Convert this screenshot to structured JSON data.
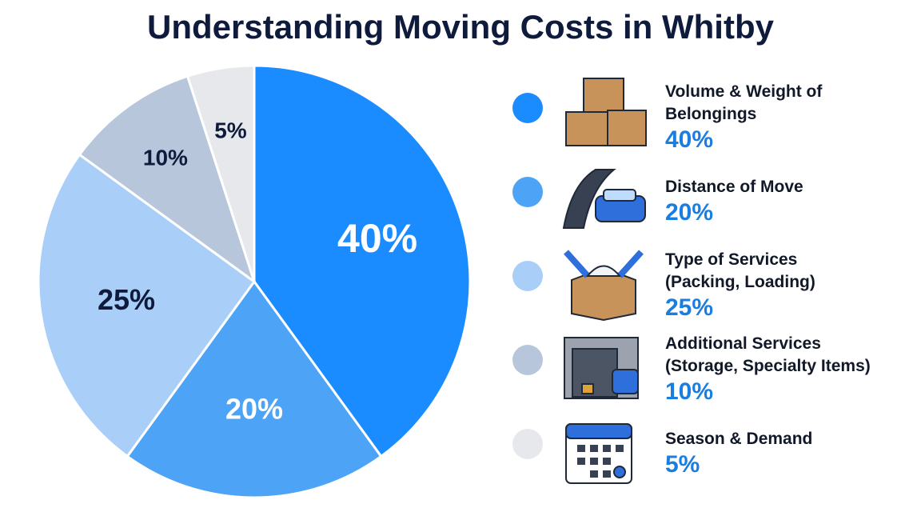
{
  "chart_data": {
    "type": "pie",
    "title": "Understanding Moving Costs in Whitby",
    "categories": [
      "Volume & Weight of Belongings",
      "Distance of Move",
      "Type of Services\n(Packing, Loading)",
      "Additional Services\n(Storage, Specialty Items)",
      "Season & Demand"
    ],
    "values": [
      40,
      20,
      25,
      10,
      5
    ],
    "value_labels": [
      "40%",
      "20%",
      "25%",
      "10%",
      "5%"
    ],
    "colors": [
      "#1a8cff",
      "#4da3f5",
      "#a9cff8",
      "#b8c6dc",
      "#e6e8ec"
    ]
  }
}
